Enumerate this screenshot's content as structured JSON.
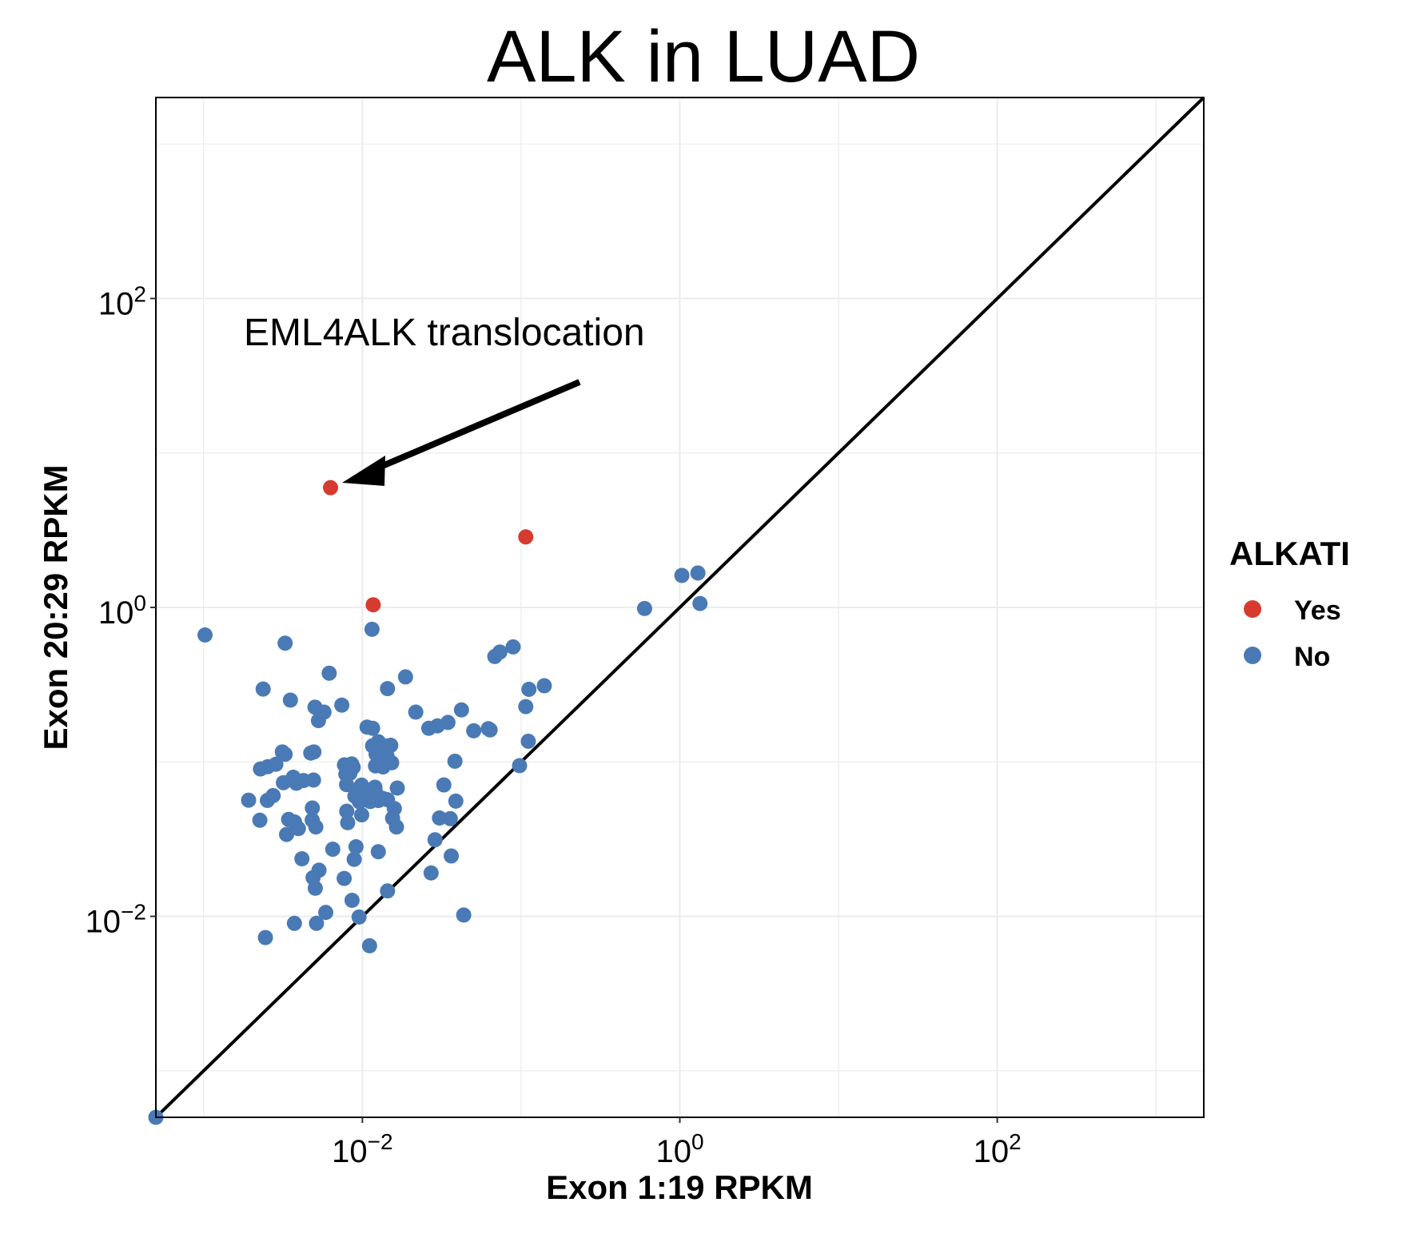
{
  "chart_data": {
    "type": "scatter",
    "title": "ALK in LUAD",
    "xlabel": "Exon 1:19 RPKM",
    "ylabel": "Exon 20:29 RPKM",
    "x_scale": "log10",
    "y_scale": "log10",
    "xlim": [
      0.0005,
      2000
    ],
    "ylim": [
      0.0005,
      2000
    ],
    "x_ticks": [
      {
        "value": 0.01,
        "base": "10",
        "exp": "−2"
      },
      {
        "value": 1,
        "base": "10",
        "exp": "0"
      },
      {
        "value": 100,
        "base": "10",
        "exp": "2"
      }
    ],
    "y_ticks": [
      {
        "value": 0.01,
        "base": "10",
        "exp": "−2"
      },
      {
        "value": 1,
        "base": "10",
        "exp": "0"
      },
      {
        "value": 100,
        "base": "10",
        "exp": "2"
      }
    ],
    "grid": true,
    "reference_line": "y = x",
    "legend": {
      "title": "ALKATI",
      "position": "right",
      "entries": [
        {
          "label": "Yes",
          "color": "#d73a2f"
        },
        {
          "label": "No",
          "color": "#4a7ab5"
        }
      ]
    },
    "annotation": {
      "text": "EML4ALK translocation",
      "points_to": {
        "x": 0.0063,
        "y": 5.96
      }
    },
    "series": [
      {
        "name": "Yes",
        "color": "#d73a2f",
        "points": [
          [
            0.0063,
            5.96
          ],
          [
            0.107,
            2.86
          ],
          [
            0.0117,
            1.04
          ]
        ]
      },
      {
        "name": "No",
        "color": "#4a7ab5",
        "points": [
          [
            0.00102,
            0.663
          ],
          [
            0.0115,
            0.722
          ],
          [
            0.00326,
            0.587
          ],
          [
            0.00618,
            0.375
          ],
          [
            0.00237,
            0.296
          ],
          [
            0.00352,
            0.251
          ],
          [
            0.00503,
            0.226
          ],
          [
            0.00573,
            0.21
          ],
          [
            0.00529,
            0.185
          ],
          [
            0.00742,
            0.233
          ],
          [
            0.0144,
            0.298
          ],
          [
            0.0187,
            0.355
          ],
          [
            0.0217,
            0.21
          ],
          [
            0.0262,
            0.165
          ],
          [
            0.0297,
            0.171
          ],
          [
            0.0346,
            0.18
          ],
          [
            0.0421,
            0.217
          ],
          [
            0.0503,
            0.159
          ],
          [
            0.0638,
            0.161
          ],
          [
            0.0683,
            0.481
          ],
          [
            0.0735,
            0.514
          ],
          [
            0.0891,
            0.555
          ],
          [
            0.0622,
            0.164
          ],
          [
            0.112,
            0.295
          ],
          [
            0.107,
            0.228
          ],
          [
            0.14,
            0.311
          ],
          [
            0.111,
            0.136
          ],
          [
            0.0978,
            0.0945
          ],
          [
            0.0326,
            0.0709
          ],
          [
            0.0388,
            0.0557
          ],
          [
            0.0358,
            0.0429
          ],
          [
            0.0306,
            0.0433
          ],
          [
            0.0287,
            0.0313
          ],
          [
            0.0363,
            0.0246
          ],
          [
            0.0271,
            0.0191
          ],
          [
            0.0383,
            0.101
          ],
          [
            0.0107,
            0.168
          ],
          [
            0.0116,
            0.165
          ],
          [
            0.0116,
            0.127
          ],
          [
            0.0126,
            0.135
          ],
          [
            0.0144,
            0.127
          ],
          [
            0.0151,
            0.128
          ],
          [
            0.0143,
            0.109
          ],
          [
            0.0122,
            0.112
          ],
          [
            0.0121,
            0.0942
          ],
          [
            0.0135,
            0.0927
          ],
          [
            0.0153,
            0.0987
          ],
          [
            0.0166,
            0.0677
          ],
          [
            0.00857,
            0.0969
          ],
          [
            0.00875,
            0.0923
          ],
          [
            0.00835,
            0.0844
          ],
          [
            0.00787,
            0.0832
          ],
          [
            0.00771,
            0.0957
          ],
          [
            0.00795,
            0.0712
          ],
          [
            0.00988,
            0.0707
          ],
          [
            0.00938,
            0.0664
          ],
          [
            0.00897,
            0.06
          ],
          [
            0.0108,
            0.0605
          ],
          [
            0.012,
            0.0685
          ],
          [
            0.0121,
            0.0635
          ],
          [
            0.0112,
            0.0554
          ],
          [
            0.0126,
            0.0562
          ],
          [
            0.0134,
            0.0581
          ],
          [
            0.0144,
            0.0569
          ],
          [
            0.0159,
            0.0499
          ],
          [
            0.0155,
            0.0432
          ],
          [
            0.0164,
            0.0379
          ],
          [
            0.0103,
            0.0598
          ],
          [
            0.00958,
            0.0552
          ],
          [
            0.0099,
            0.0454
          ],
          [
            0.00797,
            0.0479
          ],
          [
            0.00808,
            0.0404
          ],
          [
            0.00495,
            0.116
          ],
          [
            0.00473,
            0.114
          ],
          [
            0.00313,
            0.116
          ],
          [
            0.00326,
            0.112
          ],
          [
            0.00285,
            0.0965
          ],
          [
            0.00253,
            0.093
          ],
          [
            0.00228,
            0.09
          ],
          [
            0.00318,
            0.0733
          ],
          [
            0.00367,
            0.0795
          ],
          [
            0.00384,
            0.0727
          ],
          [
            0.00426,
            0.0757
          ],
          [
            0.00492,
            0.0763
          ],
          [
            0.00274,
            0.0605
          ],
          [
            0.00252,
            0.0563
          ],
          [
            0.00192,
            0.0565
          ],
          [
            0.00484,
            0.0503
          ],
          [
            0.00483,
            0.042
          ],
          [
            0.00509,
            0.0379
          ],
          [
            0.00343,
            0.0424
          ],
          [
            0.00374,
            0.0408
          ],
          [
            0.00395,
            0.037
          ],
          [
            0.00333,
            0.0339
          ],
          [
            0.00226,
            0.0419
          ],
          [
            0.00416,
            0.0236
          ],
          [
            0.00533,
            0.0199
          ],
          [
            0.00489,
            0.0178
          ],
          [
            0.00651,
            0.0272
          ],
          [
            0.00768,
            0.0176
          ],
          [
            0.00888,
            0.0234
          ],
          [
            0.00912,
            0.0282
          ],
          [
            0.0126,
            0.0262
          ],
          [
            0.0144,
            0.0146
          ],
          [
            0.00505,
            0.0152
          ],
          [
            0.00861,
            0.0127
          ],
          [
            0.00588,
            0.0106
          ],
          [
            0.00953,
            0.0099
          ],
          [
            0.00514,
            0.00901
          ],
          [
            0.00373,
            0.00901
          ],
          [
            0.00245,
            0.00729
          ],
          [
            0.0111,
            0.00645
          ],
          [
            0.0435,
            0.0102
          ],
          [
            0.6,
            0.984
          ],
          [
            1.03,
            1.61
          ],
          [
            1.3,
            1.67
          ],
          [
            1.34,
            1.06
          ],
          [
            0.0005,
            0.0005
          ]
        ]
      }
    ]
  }
}
